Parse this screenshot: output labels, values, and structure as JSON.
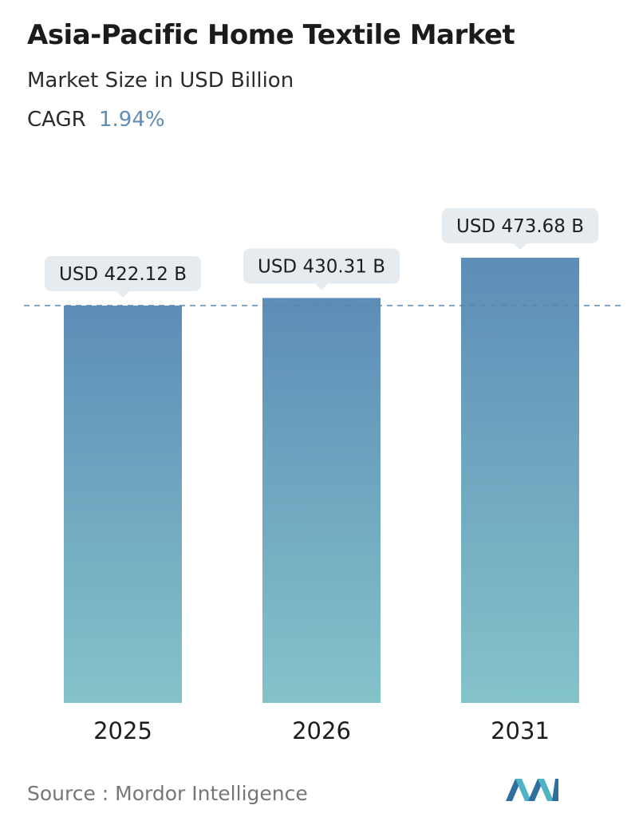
{
  "header": {
    "title": "Asia-Pacific Home Textile Market",
    "subtitle": "Market Size in USD Billion",
    "cagr_label": "CAGR",
    "cagr_value": "1.94%"
  },
  "chart_data": {
    "type": "bar",
    "title": "Asia-Pacific Home Textile Market",
    "subtitle": "Market Size in USD Billion",
    "categories": [
      "2025",
      "2026",
      "2031"
    ],
    "values": [
      422.12,
      430.31,
      473.68
    ],
    "value_labels": [
      "USD 422.12 B",
      "USD 430.31 B",
      "USD 473.68 B"
    ],
    "reference_line_value": 422.12,
    "xlabel": "",
    "ylabel": "",
    "grid": false,
    "legend": "none",
    "bar_gradient": [
      "#5d8db8",
      "#83c3c9"
    ]
  },
  "footer": {
    "source": "Source :  Mordor Intelligence",
    "logo": "mordor-intelligence-logo"
  }
}
